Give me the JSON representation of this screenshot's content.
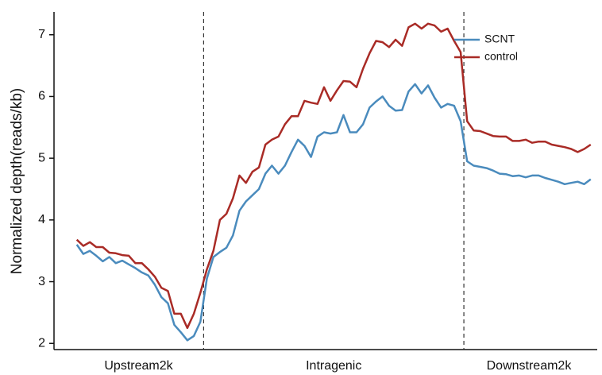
{
  "chart_data": {
    "type": "line",
    "ylabel": "Normalized depth(reads/kb)",
    "x": [
      1,
      2,
      3,
      4,
      5,
      6,
      7,
      8,
      9,
      10,
      11,
      12,
      13,
      14,
      15,
      16,
      17,
      18,
      19,
      20,
      21,
      22,
      23,
      24,
      25,
      26,
      27,
      28,
      29,
      30,
      31,
      32,
      33,
      34,
      35,
      36,
      37,
      38,
      39,
      40,
      41,
      42,
      43,
      44,
      45,
      46,
      47,
      48,
      49,
      50,
      51,
      52,
      53,
      54,
      55,
      56,
      57,
      58,
      59,
      60,
      61,
      62,
      63,
      64,
      65,
      66,
      67,
      68,
      69,
      70,
      71,
      72,
      73,
      74,
      75,
      76,
      77,
      78,
      79,
      80
    ],
    "series": [
      {
        "name": "SCNT",
        "color": "#4a8bbd",
        "values": [
          3.6,
          3.45,
          3.5,
          3.42,
          3.33,
          3.4,
          3.3,
          3.34,
          3.28,
          3.22,
          3.15,
          3.1,
          2.95,
          2.75,
          2.65,
          2.3,
          2.18,
          2.05,
          2.12,
          2.35,
          3.05,
          3.4,
          3.48,
          3.55,
          3.75,
          4.15,
          4.3,
          4.4,
          4.5,
          4.75,
          4.88,
          4.75,
          4.88,
          5.1,
          5.3,
          5.2,
          5.02,
          5.35,
          5.42,
          5.4,
          5.42,
          5.7,
          5.42,
          5.42,
          5.55,
          5.82,
          5.92,
          6.0,
          5.85,
          5.77,
          5.78,
          6.08,
          6.2,
          6.05,
          6.18,
          5.98,
          5.82,
          5.88,
          5.85,
          5.6,
          4.95,
          4.88,
          4.86,
          4.84,
          4.8,
          4.75,
          4.74,
          4.71,
          4.72,
          4.69,
          4.72,
          4.72,
          4.68,
          4.65,
          4.62,
          4.58,
          4.6,
          4.62,
          4.58,
          4.66
        ]
      },
      {
        "name": "control",
        "color": "#a92b26",
        "values": [
          3.68,
          3.58,
          3.64,
          3.56,
          3.56,
          3.47,
          3.46,
          3.43,
          3.42,
          3.3,
          3.3,
          3.2,
          3.08,
          2.9,
          2.85,
          2.48,
          2.48,
          2.25,
          2.48,
          2.82,
          3.2,
          3.5,
          4.0,
          4.1,
          4.35,
          4.72,
          4.6,
          4.78,
          4.85,
          5.22,
          5.3,
          5.35,
          5.55,
          5.68,
          5.68,
          5.93,
          5.9,
          5.88,
          6.15,
          5.93,
          6.1,
          6.25,
          6.24,
          6.15,
          6.45,
          6.7,
          6.9,
          6.88,
          6.8,
          6.92,
          6.82,
          7.12,
          7.18,
          7.1,
          7.18,
          7.15,
          7.05,
          7.1,
          6.9,
          6.72,
          5.6,
          5.45,
          5.44,
          5.4,
          5.36,
          5.35,
          5.35,
          5.28,
          5.28,
          5.3,
          5.25,
          5.27,
          5.27,
          5.22,
          5.2,
          5.18,
          5.15,
          5.1,
          5.15,
          5.22
        ]
      }
    ],
    "xlim": [
      -2.5,
      81
    ],
    "xticks": [
      {
        "value": 10.5,
        "label": "Upstream2k"
      },
      {
        "value": 40.5,
        "label": "Intragenic"
      },
      {
        "value": 70.5,
        "label": "Downstream2k"
      }
    ],
    "vlines": [
      20.5,
      60.5
    ],
    "ylim": [
      1.9,
      7.37
    ],
    "yticks": [
      2,
      3,
      4,
      5,
      6,
      7
    ],
    "legend": "upper right"
  }
}
